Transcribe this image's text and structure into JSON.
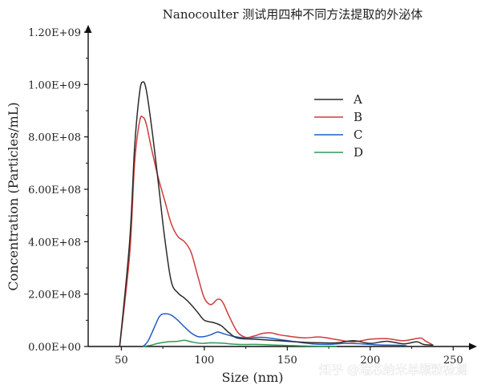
{
  "chart_data": {
    "type": "line",
    "title": "Nanocoulter 测试用四种不同方法提取的外泌体",
    "xlabel": "Size (nm)",
    "ylabel": "Concentration (Particles/mL)",
    "xlim": [
      30,
      260
    ],
    "ylim": [
      0,
      1200000000
    ],
    "x_ticks": [
      50,
      100,
      150,
      200,
      250
    ],
    "x_tick_labels": [
      "50",
      "100",
      "150",
      "200",
      "250"
    ],
    "y_ticks": [
      0,
      200000000,
      400000000,
      600000000,
      800000000,
      1000000000,
      1200000000
    ],
    "y_tick_labels": [
      "0.00E+00",
      "2.00E+08",
      "4.00E+08",
      "6.00E+08",
      "8.00E+08",
      "1.00E+09",
      "1.20E+09"
    ],
    "legend_position": "top-right",
    "grid": false,
    "series": [
      {
        "name": "A",
        "color": "#2b2b2b",
        "points": [
          [
            49,
            0
          ],
          [
            55,
            400000000
          ],
          [
            58,
            760000000
          ],
          [
            61,
            970000000
          ],
          [
            63,
            1010000000
          ],
          [
            65,
            980000000
          ],
          [
            68,
            850000000
          ],
          [
            72,
            640000000
          ],
          [
            76,
            420000000
          ],
          [
            80,
            250000000
          ],
          [
            84,
            205000000
          ],
          [
            88,
            185000000
          ],
          [
            92,
            160000000
          ],
          [
            96,
            130000000
          ],
          [
            100,
            100000000
          ],
          [
            105,
            92000000
          ],
          [
            110,
            80000000
          ],
          [
            115,
            52000000
          ],
          [
            120,
            32000000
          ],
          [
            130,
            28000000
          ],
          [
            140,
            24000000
          ],
          [
            150,
            20000000
          ],
          [
            160,
            16000000
          ],
          [
            170,
            14000000
          ],
          [
            180,
            14000000
          ],
          [
            190,
            22000000
          ],
          [
            200,
            12000000
          ],
          [
            210,
            20000000
          ],
          [
            220,
            10000000
          ],
          [
            228,
            18000000
          ],
          [
            232,
            8000000
          ],
          [
            238,
            5000000
          ]
        ]
      },
      {
        "name": "B",
        "color": "#d03a3a",
        "points": [
          [
            49,
            0
          ],
          [
            55,
            350000000
          ],
          [
            58,
            700000000
          ],
          [
            61,
            860000000
          ],
          [
            63,
            875000000
          ],
          [
            65,
            850000000
          ],
          [
            68,
            760000000
          ],
          [
            72,
            650000000
          ],
          [
            76,
            560000000
          ],
          [
            80,
            470000000
          ],
          [
            84,
            420000000
          ],
          [
            88,
            400000000
          ],
          [
            92,
            360000000
          ],
          [
            96,
            270000000
          ],
          [
            100,
            185000000
          ],
          [
            104,
            160000000
          ],
          [
            108,
            180000000
          ],
          [
            111,
            170000000
          ],
          [
            115,
            115000000
          ],
          [
            120,
            55000000
          ],
          [
            125,
            35000000
          ],
          [
            130,
            40000000
          ],
          [
            135,
            50000000
          ],
          [
            140,
            52000000
          ],
          [
            145,
            45000000
          ],
          [
            150,
            40000000
          ],
          [
            160,
            33000000
          ],
          [
            170,
            36000000
          ],
          [
            180,
            26000000
          ],
          [
            190,
            18000000
          ],
          [
            200,
            28000000
          ],
          [
            210,
            30000000
          ],
          [
            220,
            22000000
          ],
          [
            230,
            32000000
          ],
          [
            233,
            22000000
          ],
          [
            238,
            5000000
          ]
        ]
      },
      {
        "name": "C",
        "color": "#1f5fc4",
        "points": [
          [
            63,
            0
          ],
          [
            66,
            20000000
          ],
          [
            70,
            75000000
          ],
          [
            73,
            115000000
          ],
          [
            76,
            125000000
          ],
          [
            80,
            120000000
          ],
          [
            84,
            100000000
          ],
          [
            88,
            75000000
          ],
          [
            92,
            52000000
          ],
          [
            96,
            38000000
          ],
          [
            100,
            38000000
          ],
          [
            104,
            45000000
          ],
          [
            108,
            55000000
          ],
          [
            112,
            48000000
          ],
          [
            118,
            38000000
          ],
          [
            125,
            33000000
          ],
          [
            135,
            35000000
          ],
          [
            145,
            27000000
          ],
          [
            155,
            18000000
          ],
          [
            165,
            10000000
          ],
          [
            175,
            8000000
          ],
          [
            185,
            12000000
          ],
          [
            195,
            10000000
          ],
          [
            205,
            6000000
          ],
          [
            215,
            5000000
          ],
          [
            222,
            3000000
          ]
        ]
      },
      {
        "name": "D",
        "color": "#2e9a55",
        "points": [
          [
            63,
            0
          ],
          [
            68,
            5000000
          ],
          [
            72,
            12000000
          ],
          [
            78,
            18000000
          ],
          [
            84,
            20000000
          ],
          [
            88,
            24000000
          ],
          [
            92,
            18000000
          ],
          [
            98,
            12000000
          ],
          [
            104,
            14000000
          ],
          [
            110,
            13000000
          ],
          [
            120,
            8000000
          ],
          [
            130,
            8000000
          ],
          [
            140,
            6000000
          ],
          [
            150,
            4000000
          ],
          [
            160,
            2000000
          ],
          [
            170,
            1000000
          ],
          [
            180,
            0
          ]
        ]
      }
    ]
  },
  "watermark": "知乎 @瑞芯纳米单颗粒检测"
}
